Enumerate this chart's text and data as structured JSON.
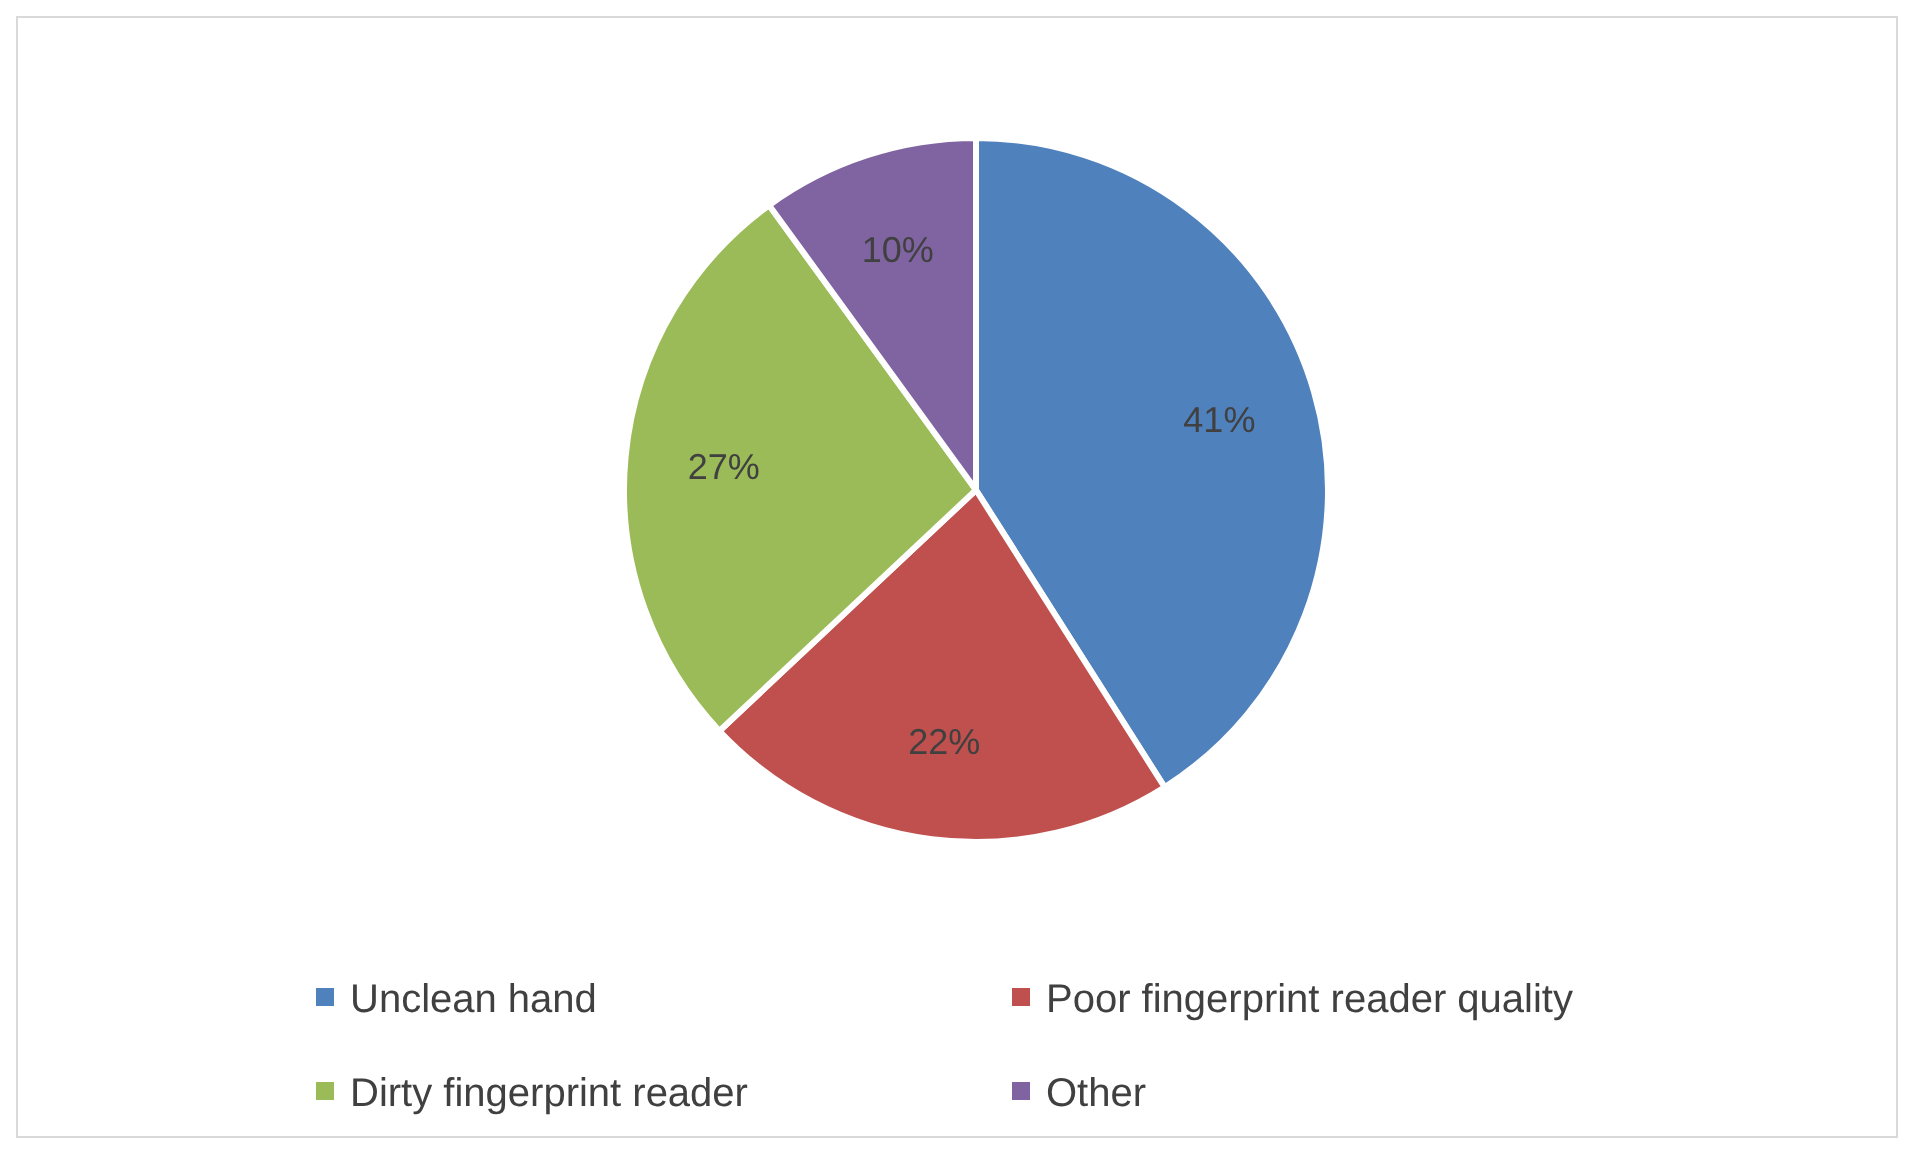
{
  "chart_data": {
    "type": "pie",
    "categories": [
      "Unclean hand",
      "Poor fingerprint reader quality",
      "Dirty fingerprint reader",
      "Other"
    ],
    "values": [
      41,
      22,
      27,
      10
    ],
    "colors": [
      "#4f81bd",
      "#c0504d",
      "#9bbb59",
      "#8064a2"
    ],
    "value_labels": [
      "41%",
      "22%",
      "27%",
      "10%"
    ],
    "legend": "bottom"
  }
}
